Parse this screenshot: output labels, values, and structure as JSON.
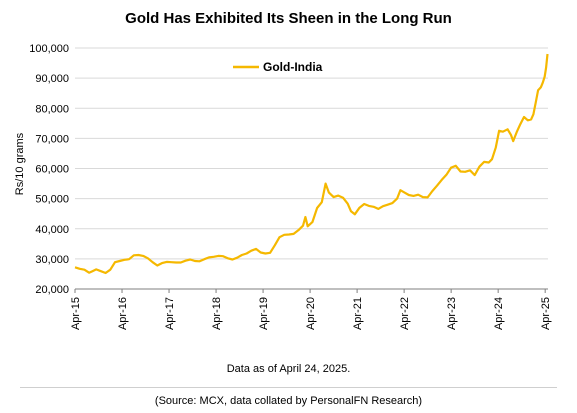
{
  "chart_data": {
    "type": "line",
    "title": "Gold Has Exhibited Its Sheen in the Long Run",
    "ylabel": "Rs/10 grams",
    "xlabel": "",
    "ylim": [
      20000,
      100000
    ],
    "yticks": [
      20000,
      30000,
      40000,
      50000,
      60000,
      70000,
      80000,
      90000,
      100000
    ],
    "ytick_labels": [
      "20,000",
      "30,000",
      "40,000",
      "50,000",
      "60,000",
      "70,000",
      "80,000",
      "90,000",
      "100,000"
    ],
    "xlim": [
      2015.25,
      2025.31
    ],
    "xticks": [
      2015.25,
      2016.25,
      2017.25,
      2018.25,
      2019.25,
      2020.25,
      2021.25,
      2022.25,
      2023.25,
      2024.25,
      2025.25
    ],
    "xtick_labels": [
      "Apr-15",
      "Apr-16",
      "Apr-17",
      "Apr-18",
      "Apr-19",
      "Apr-20",
      "Apr-21",
      "Apr-22",
      "Apr-23",
      "Apr-24",
      "Apr-25"
    ],
    "grid": "horizontal",
    "legend_position": "top-left",
    "series": [
      {
        "name": "Gold-India",
        "color": "#F5B800",
        "points": [
          [
            2015.25,
            27200
          ],
          [
            2015.35,
            26700
          ],
          [
            2015.45,
            26400
          ],
          [
            2015.55,
            25400
          ],
          [
            2015.62,
            25900
          ],
          [
            2015.7,
            26500
          ],
          [
            2015.8,
            25900
          ],
          [
            2015.9,
            25300
          ],
          [
            2016.0,
            26400
          ],
          [
            2016.1,
            28900
          ],
          [
            2016.2,
            29300
          ],
          [
            2016.3,
            29700
          ],
          [
            2016.4,
            29900
          ],
          [
            2016.5,
            31200
          ],
          [
            2016.6,
            31300
          ],
          [
            2016.7,
            31000
          ],
          [
            2016.8,
            30200
          ],
          [
            2016.9,
            28900
          ],
          [
            2017.0,
            27800
          ],
          [
            2017.1,
            28600
          ],
          [
            2017.2,
            29000
          ],
          [
            2017.3,
            28900
          ],
          [
            2017.4,
            28800
          ],
          [
            2017.5,
            28800
          ],
          [
            2017.6,
            29400
          ],
          [
            2017.7,
            29800
          ],
          [
            2017.8,
            29300
          ],
          [
            2017.9,
            29200
          ],
          [
            2018.0,
            29900
          ],
          [
            2018.1,
            30500
          ],
          [
            2018.2,
            30700
          ],
          [
            2018.3,
            31000
          ],
          [
            2018.4,
            30900
          ],
          [
            2018.5,
            30200
          ],
          [
            2018.6,
            29800
          ],
          [
            2018.7,
            30400
          ],
          [
            2018.8,
            31300
          ],
          [
            2018.9,
            31800
          ],
          [
            2019.0,
            32700
          ],
          [
            2019.1,
            33300
          ],
          [
            2019.2,
            32100
          ],
          [
            2019.3,
            31800
          ],
          [
            2019.4,
            32000
          ],
          [
            2019.5,
            34500
          ],
          [
            2019.6,
            37200
          ],
          [
            2019.7,
            38000
          ],
          [
            2019.8,
            38100
          ],
          [
            2019.9,
            38300
          ],
          [
            2020.0,
            39500
          ],
          [
            2020.1,
            41000
          ],
          [
            2020.15,
            43900
          ],
          [
            2020.2,
            40800
          ],
          [
            2020.3,
            42200
          ],
          [
            2020.4,
            46900
          ],
          [
            2020.5,
            48800
          ],
          [
            2020.58,
            55000
          ],
          [
            2020.65,
            52000
          ],
          [
            2020.75,
            50500
          ],
          [
            2020.85,
            51000
          ],
          [
            2020.95,
            50300
          ],
          [
            2021.05,
            48300
          ],
          [
            2021.12,
            45800
          ],
          [
            2021.2,
            44800
          ],
          [
            2021.3,
            47000
          ],
          [
            2021.4,
            48200
          ],
          [
            2021.5,
            47600
          ],
          [
            2021.6,
            47300
          ],
          [
            2021.7,
            46600
          ],
          [
            2021.8,
            47500
          ],
          [
            2021.9,
            48000
          ],
          [
            2022.0,
            48500
          ],
          [
            2022.1,
            50000
          ],
          [
            2022.17,
            52800
          ],
          [
            2022.25,
            52100
          ],
          [
            2022.35,
            51200
          ],
          [
            2022.45,
            50900
          ],
          [
            2022.55,
            51300
          ],
          [
            2022.65,
            50500
          ],
          [
            2022.75,
            50400
          ],
          [
            2022.85,
            52500
          ],
          [
            2022.95,
            54300
          ],
          [
            2023.05,
            56200
          ],
          [
            2023.15,
            57900
          ],
          [
            2023.25,
            60300
          ],
          [
            2023.35,
            60900
          ],
          [
            2023.45,
            59000
          ],
          [
            2023.55,
            58900
          ],
          [
            2023.65,
            59400
          ],
          [
            2023.75,
            57800
          ],
          [
            2023.85,
            60600
          ],
          [
            2023.95,
            62200
          ],
          [
            2024.05,
            62000
          ],
          [
            2024.12,
            63100
          ],
          [
            2024.2,
            67000
          ],
          [
            2024.27,
            72500
          ],
          [
            2024.35,
            72200
          ],
          [
            2024.45,
            73000
          ],
          [
            2024.52,
            71200
          ],
          [
            2024.57,
            69100
          ],
          [
            2024.65,
            72300
          ],
          [
            2024.72,
            74700
          ],
          [
            2024.8,
            77100
          ],
          [
            2024.88,
            76000
          ],
          [
            2024.95,
            76300
          ],
          [
            2025.0,
            78000
          ],
          [
            2025.05,
            82000
          ],
          [
            2025.1,
            86000
          ],
          [
            2025.16,
            87000
          ],
          [
            2025.2,
            88500
          ],
          [
            2025.24,
            90500
          ],
          [
            2025.27,
            93500
          ],
          [
            2025.3,
            98000
          ]
        ]
      }
    ]
  },
  "footer": {
    "note": "Data as of April 24, 2025.",
    "source": "(Source: MCX, data collated by PersonalFN Research)"
  }
}
